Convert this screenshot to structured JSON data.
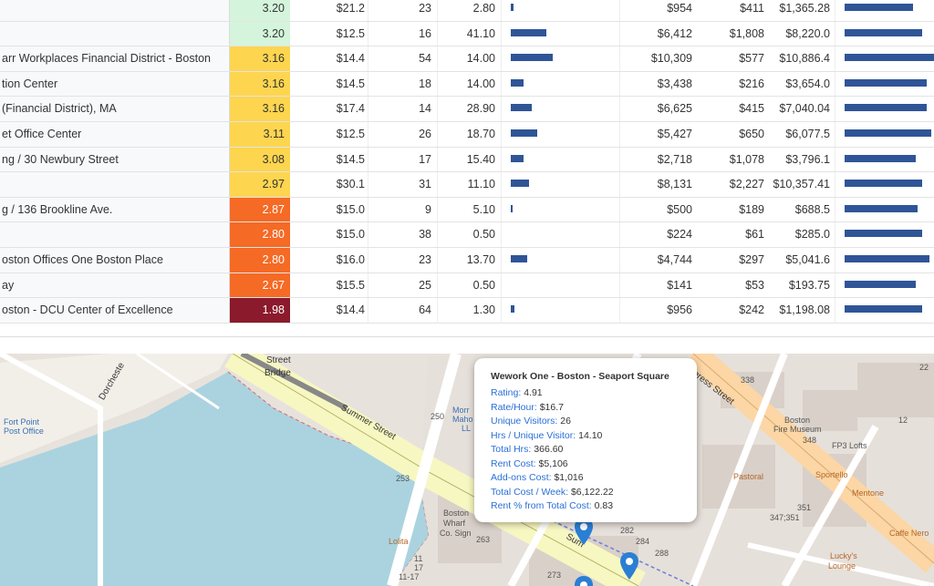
{
  "table": {
    "rows": [
      {
        "name": "",
        "rating": "3.20",
        "rating_color": "#d4f5dc",
        "rate": "$21.2",
        "uv": "23",
        "hrs": "2.80",
        "bar1": 0.02,
        "rent": "$954",
        "addon": "$411",
        "total": "$1,365.28",
        "bar2": 0.75
      },
      {
        "name": "",
        "rating": "3.20",
        "rating_color": "#d4f5dc",
        "rate": "$12.5",
        "uv": "16",
        "hrs": "41.10",
        "bar1": 0.3,
        "rent": "$6,412",
        "addon": "$1,808",
        "total": "$8,220.0",
        "bar2": 0.85
      },
      {
        "name": "arr Workplaces Financial District - Boston",
        "rating": "3.16",
        "rating_color": "#fdd54f",
        "rate": "$14.4",
        "uv": "54",
        "hrs": "14.00",
        "bar1": 0.35,
        "rent": "$10,309",
        "addon": "$577",
        "total": "$10,886.4",
        "bar2": 0.98
      },
      {
        "name": "tion Center",
        "rating": "3.16",
        "rating_color": "#fdd54f",
        "rate": "$14.5",
        "uv": "18",
        "hrs": "14.00",
        "bar1": 0.11,
        "rent": "$3,438",
        "addon": "$216",
        "total": "$3,654.0",
        "bar2": 0.9
      },
      {
        "name": "(Financial District), MA",
        "rating": "3.16",
        "rating_color": "#fdd54f",
        "rate": "$17.4",
        "uv": "14",
        "hrs": "28.90",
        "bar1": 0.18,
        "rent": "$6,625",
        "addon": "$415",
        "total": "$7,040.04",
        "bar2": 0.9
      },
      {
        "name": "et Office Center",
        "rating": "3.11",
        "rating_color": "#fdd54f",
        "rate": "$12.5",
        "uv": "26",
        "hrs": "18.70",
        "bar1": 0.22,
        "rent": "$5,427",
        "addon": "$650",
        "total": "$6,077.5",
        "bar2": 0.95
      },
      {
        "name": "ng / 30 Newbury Street",
        "rating": "3.08",
        "rating_color": "#fdd54f",
        "rate": "$14.5",
        "uv": "17",
        "hrs": "15.40",
        "bar1": 0.11,
        "rent": "$2,718",
        "addon": "$1,078",
        "total": "$3,796.1",
        "bar2": 0.78
      },
      {
        "name": "",
        "rating": "2.97",
        "rating_color": "#fdd54f",
        "rate": "$30.1",
        "uv": "31",
        "hrs": "11.10",
        "bar1": 0.15,
        "rent": "$8,131",
        "addon": "$2,227",
        "total": "$10,357.41",
        "bar2": 0.85
      },
      {
        "name": "g / 136 Brookline Ave.",
        "rating": "2.87",
        "rating_color": "#f56a25",
        "rate": "$15.0",
        "uv": "9",
        "hrs": "5.10",
        "bar1": 0.01,
        "rent": "$500",
        "addon": "$189",
        "total": "$688.5",
        "bar2": 0.8
      },
      {
        "name": "",
        "rating": "2.80",
        "rating_color": "#f56a25",
        "rate": "$15.0",
        "uv": "38",
        "hrs": "0.50",
        "bar1": 0,
        "rent": "$224",
        "addon": "$61",
        "total": "$285.0",
        "bar2": 0.85
      },
      {
        "name": "oston Offices One Boston Place",
        "rating": "2.80",
        "rating_color": "#f56a25",
        "rate": "$16.0",
        "uv": "23",
        "hrs": "13.70",
        "bar1": 0.14,
        "rent": "$4,744",
        "addon": "$297",
        "total": "$5,041.6",
        "bar2": 0.93
      },
      {
        "name": "ay",
        "rating": "2.67",
        "rating_color": "#f56a25",
        "rate": "$15.5",
        "uv": "25",
        "hrs": "0.50",
        "bar1": 0,
        "rent": "$141",
        "addon": "$53",
        "total": "$193.75",
        "bar2": 0.78
      },
      {
        "name": "oston - DCU Center of Excellence",
        "rating": "1.98",
        "rating_color": "#8b1a2c",
        "rate": "$14.4",
        "uv": "64",
        "hrs": "1.30",
        "bar1": 0.03,
        "rent": "$956",
        "addon": "$242",
        "total": "$1,198.08",
        "bar2": 0.85
      }
    ]
  },
  "map": {
    "labels": {
      "street_bridge_1": "Street",
      "street_bridge_2": "Bridge",
      "summer_street": "Summer Street",
      "dorchester": "Dorcheste",
      "fort_point_1": "Fort Point",
      "fort_point_2": "Post Office",
      "congress_street": "gress Street",
      "boston_fire_1": "Boston",
      "boston_fire_2": "Fire Museum",
      "fp3": "FP3 Lofts",
      "pastoral": "Pastoral",
      "sportello": "Sportello",
      "mentone": "Mentone",
      "caffe": "Caffe Nero",
      "luckys_1": "Lucky's",
      "luckys_2": "Lounge",
      "lolita": "Lolita",
      "wharf_1": "Boston",
      "wharf_2": "Wharf",
      "wharf_3": "Co. Sign",
      "morr_1": "Morr",
      "morr_2": "Maho",
      "morr_3": "LL",
      "sum_pin": "Sum",
      "n338": "338",
      "n22": "22",
      "n12": "12",
      "n348": "348",
      "n351": "351",
      "n347": "347;351",
      "n250": "250",
      "n253": "253",
      "n263": "263",
      "n282": "282",
      "n284": "284",
      "n288": "288",
      "n273": "273",
      "n11a": "11",
      "n17": "17",
      "n1117": "11-17"
    }
  },
  "popup": {
    "title": "Wework One - Boston - Seaport Square",
    "fields": [
      {
        "key": "Rating:",
        "value": "4.91"
      },
      {
        "key": "Rate/Hour:",
        "value": "$16.7"
      },
      {
        "key": "Unique Visitors:",
        "value": "26"
      },
      {
        "key": "Hrs / Unique Visitor:",
        "value": "14.10"
      },
      {
        "key": "Total Hrs:",
        "value": "366.60"
      },
      {
        "key": "Rent Cost:",
        "value": "$5,106"
      },
      {
        "key": "Add-ons Cost:",
        "value": "$1,016"
      },
      {
        "key": "Total Cost / Week:",
        "value": "$6,122.22"
      },
      {
        "key": "Rent % from Total Cost:",
        "value": "0.83"
      }
    ]
  },
  "colors": {
    "bar": "#2f5597",
    "water": "#aad3df",
    "road_yellow": "#f7f7c2",
    "road_orange": "#fcd6a4",
    "pin": "#2a7fd4"
  }
}
